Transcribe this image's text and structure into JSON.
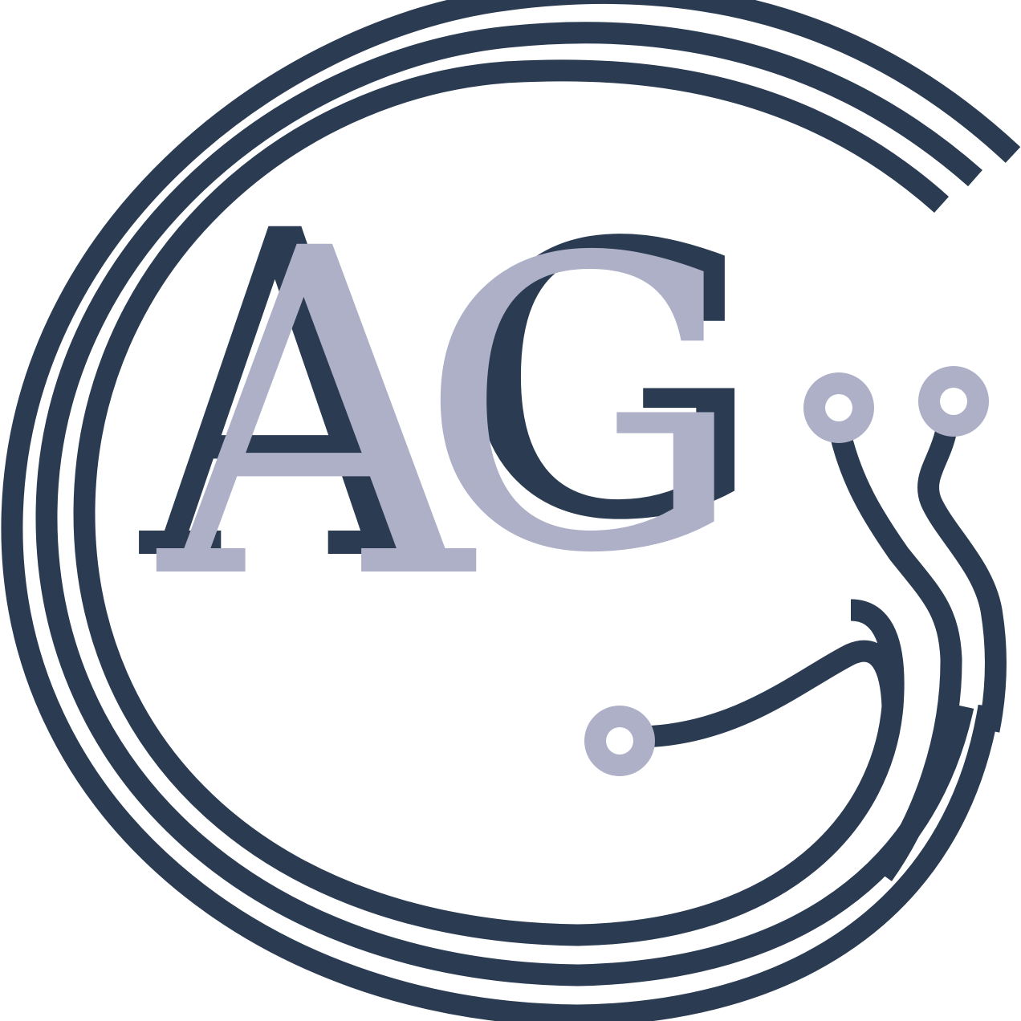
{
  "logo": {
    "monogram": {
      "letter_1": "A",
      "letter_2": "G"
    },
    "colors": {
      "navy": "#2a3b52",
      "lavender": "#adb0c7",
      "background": "#ffffff"
    }
  }
}
